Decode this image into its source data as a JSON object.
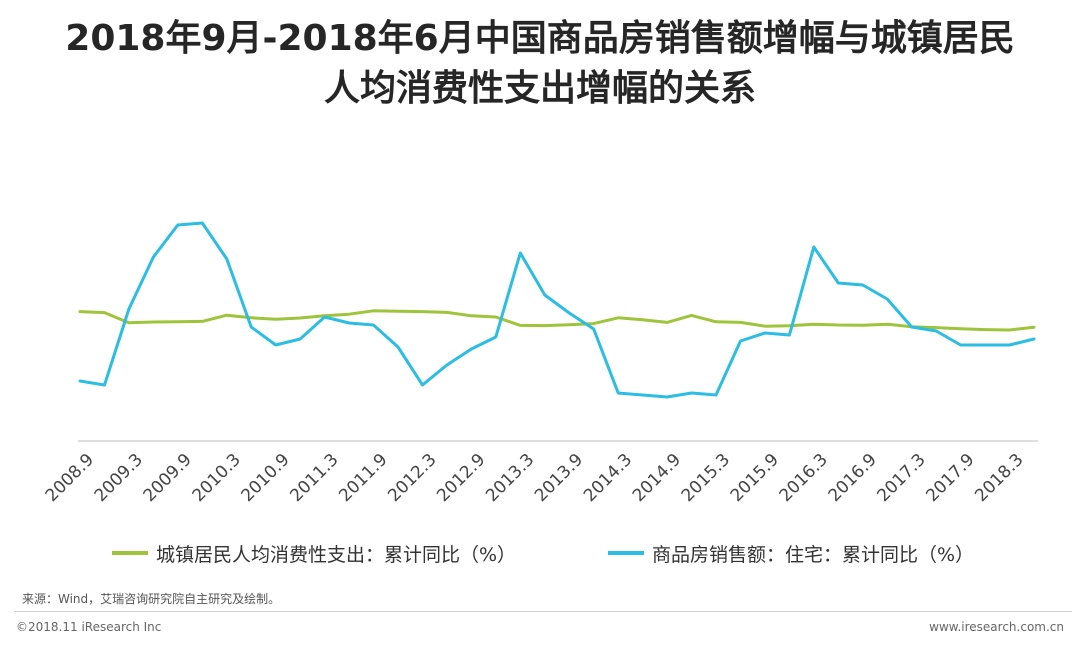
{
  "header": {
    "title_line1": "2018年9月-2018年6月中国商品房销售额增幅与城镇居民",
    "title_line2": "人均消费性支出增幅的关系"
  },
  "chart_data": {
    "type": "line",
    "title": "2018年9月-2018年6月中国商品房销售额增幅与城镇居民人均消费性支出增幅的关系",
    "x": [
      "2008.9",
      "2008.12",
      "2009.3",
      "2009.6",
      "2009.9",
      "2009.12",
      "2010.3",
      "2010.6",
      "2010.9",
      "2010.12",
      "2011.3",
      "2011.6",
      "2011.9",
      "2011.12",
      "2012.3",
      "2012.6",
      "2012.9",
      "2012.12",
      "2013.3",
      "2013.6",
      "2013.9",
      "2013.12",
      "2014.3",
      "2014.6",
      "2014.9",
      "2014.12",
      "2015.3",
      "2015.6",
      "2015.9",
      "2015.12",
      "2016.3",
      "2016.6",
      "2016.9",
      "2016.12",
      "2017.3",
      "2017.6",
      "2017.9",
      "2017.12",
      "2018.3",
      "2018.6"
    ],
    "x_tick_labels": [
      "2008.9",
      "2009.3",
      "2009.9",
      "2010.3",
      "2010.9",
      "2011.3",
      "2011.9",
      "2012.3",
      "2012.9",
      "2013.3",
      "2013.9",
      "2014.3",
      "2014.9",
      "2015.3",
      "2015.9",
      "2016.3",
      "2016.9",
      "2017.3",
      "2017.9",
      "2018.3"
    ],
    "ylim": [
      -50,
      100
    ],
    "grid": false,
    "y_axis_visible": false,
    "legend_position": "bottom",
    "series": [
      {
        "name": "城镇居民人均消费性支出：累计同比（%）",
        "color": "#9dc43a",
        "values": [
          14.7,
          14.2,
          9.1,
          9.5,
          9.6,
          9.8,
          12.9,
          11.6,
          10.9,
          11.5,
          12.6,
          13.4,
          15.1,
          14.9,
          14.7,
          14.3,
          12.6,
          12.0,
          7.8,
          7.7,
          8.1,
          8.7,
          11.6,
          10.6,
          9.3,
          12.8,
          9.6,
          9.3,
          7.4,
          7.6,
          8.4,
          8.0,
          7.9,
          8.4,
          7.1,
          6.7,
          6.1,
          5.7,
          5.5,
          6.9
        ]
      },
      {
        "name": "商品房销售额：住宅：累计同比（%）",
        "color": "#2bbde3",
        "values": [
          -20.0,
          -22.0,
          16.0,
          42.0,
          58.0,
          59.0,
          41.0,
          7.0,
          -2.0,
          1.0,
          12.0,
          9.0,
          8.0,
          -3.0,
          -22.0,
          -12.0,
          -4.0,
          2.0,
          44.0,
          23.0,
          14.0,
          6.0,
          -26.0,
          -27.0,
          -28.0,
          -26.0,
          -27.0,
          0.0,
          4.0,
          3.0,
          47.0,
          29.0,
          28.0,
          21.0,
          7.0,
          5.0,
          -2.0,
          -2.0,
          -2.0,
          1.0
        ]
      }
    ]
  },
  "legend": {
    "items": [
      {
        "label": "城镇居民人均消费性支出：累计同比（%）",
        "color": "#9dc43a"
      },
      {
        "label": "商品房销售额：住宅：累计同比（%）",
        "color": "#2bbde3"
      }
    ]
  },
  "source": {
    "text": "来源：Wind，艾瑞咨询研究院自主研究及绘制。"
  },
  "footer": {
    "copyright": "©2018.11 iResearch Inc",
    "website": "www.iresearch.com.cn"
  }
}
